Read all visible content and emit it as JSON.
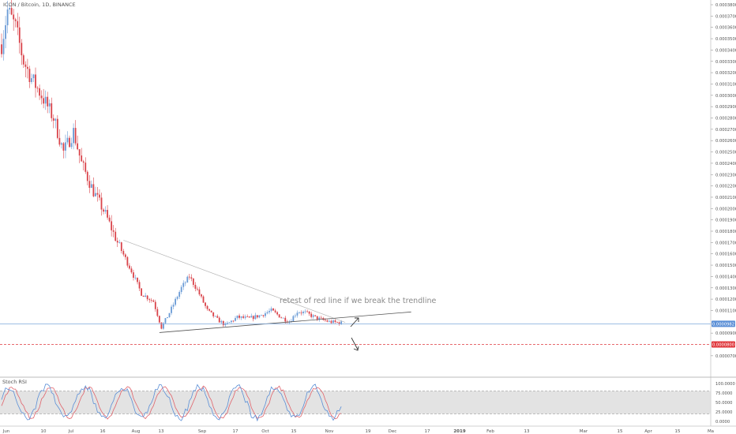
{
  "symbol": {
    "title": "ICON / Bitcoin, 1D, BINANCE"
  },
  "annotation": {
    "text": "retest of red line if we break the trendline"
  },
  "price_axis": {
    "min": 7e-05,
    "max": 0.00038,
    "step": 1e-05,
    "ticks": [
      "0.0003800",
      "0.0003700",
      "0.0003600",
      "0.0003500",
      "0.0003400",
      "0.0003300",
      "0.0003200",
      "0.0003100",
      "0.0003000",
      "0.0002900",
      "0.0002800",
      "0.0002700",
      "0.0002600",
      "0.0002500",
      "0.0002400",
      "0.0002300",
      "0.0002200",
      "0.0002100",
      "0.0002000",
      "0.0001900",
      "0.0001800",
      "0.0001700",
      "0.0001600",
      "0.0001500",
      "0.0001400",
      "0.0001300",
      "0.0001200",
      "0.0001100",
      "0.0000900",
      "0.0000700"
    ],
    "current_price_label": "0.0000982",
    "current_price": 9.82e-05,
    "red_level_label": "0.0000800",
    "red_level": 8e-05
  },
  "rsi_panel": {
    "title": "Stoch RSI",
    "ticks": [
      "100.0000",
      "75.0000",
      "50.0000",
      "25.0000",
      "0.0000"
    ],
    "range": [
      0,
      100
    ],
    "band": [
      20,
      80
    ]
  },
  "time_axis": {
    "labels": [
      "Jun",
      "10",
      "Jul",
      "16",
      "Aug",
      "13",
      "Sep",
      "17",
      "Oct",
      "15",
      "Nov",
      "19",
      "Dec",
      "17",
      "2019",
      "Feb",
      "13",
      "Mar",
      "15",
      "Apr",
      "15",
      "Ma"
    ],
    "bold": [
      "2019"
    ]
  },
  "colors": {
    "up": "#6a9bd6",
    "down": "#d9434a",
    "trendline": "#3d3d3d",
    "price_line": "#7fa9dc",
    "red_line": "#e0393e",
    "rsi_k": "#5b8fd6",
    "rsi_d": "#e0636b",
    "rsi_band": "#d8d8d8"
  },
  "chart_data": {
    "type": "candlestick",
    "note_series": "ICON / Bitcoin daily",
    "anchors": [
      [
        0,
        0.000345
      ],
      [
        3,
        0.000375
      ],
      [
        7,
        0.00036
      ],
      [
        11,
        0.00033
      ],
      [
        15,
        0.000315
      ],
      [
        20,
        0.0003
      ],
      [
        26,
        0.00028
      ],
      [
        31,
        0.00025
      ],
      [
        36,
        0.000268
      ],
      [
        40,
        0.00024
      ],
      [
        46,
        0.000215
      ],
      [
        52,
        0.000195
      ],
      [
        58,
        0.00017
      ],
      [
        65,
        0.000145
      ],
      [
        70,
        0.000125
      ],
      [
        76,
        0.000118
      ],
      [
        80,
        9.5e-05
      ],
      [
        84,
        0.000108
      ],
      [
        90,
        0.00013
      ],
      [
        94,
        0.00014
      ],
      [
        98,
        0.000128
      ],
      [
        103,
        0.00011
      ],
      [
        108,
        0.000102
      ],
      [
        112,
        9.7e-05
      ],
      [
        118,
        0.000104
      ],
      [
        124,
        0.000103
      ],
      [
        130,
        0.000106
      ],
      [
        135,
        0.00011
      ],
      [
        140,
        0.000104
      ],
      [
        144,
        0.0001
      ],
      [
        148,
        0.000109
      ],
      [
        152,
        0.000108
      ],
      [
        158,
        0.000103
      ],
      [
        164,
        0.0001
      ],
      [
        170,
        9.9e-05
      ]
    ],
    "trendlines": [
      {
        "name": "descending",
        "from": [
          61,
          0.000172
        ],
        "to": [
          172,
          9.95e-05
        ]
      },
      {
        "name": "ascending",
        "from": [
          79,
          9.05e-05
        ],
        "to": [
          205,
          0.0001087
        ]
      }
    ]
  }
}
